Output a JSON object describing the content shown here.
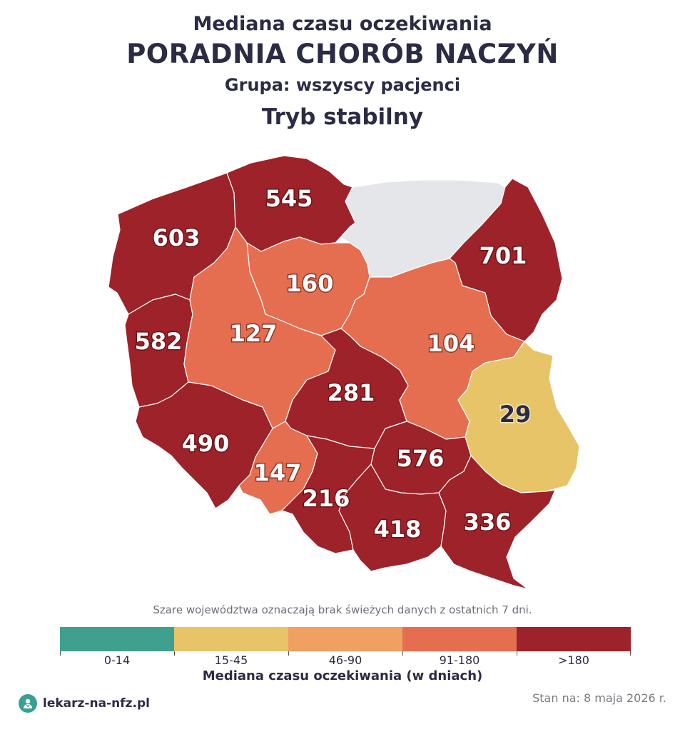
{
  "header": {
    "pretitle": "Mediana czasu oczekiwania",
    "title": "PORADNIA CHORÓB NACZYŃ",
    "group": "Grupa: wszyscy pacjenci",
    "mode": "Tryb stabilny"
  },
  "map": {
    "no_data_color": "#e5e6ea",
    "regions": [
      {
        "id": "zachodniopomorskie",
        "value": 603,
        "label": "603",
        "color": "#9e2229",
        "text_color": "#ffffff"
      },
      {
        "id": "pomorskie",
        "value": 545,
        "label": "545",
        "color": "#9e2229",
        "text_color": "#ffffff"
      },
      {
        "id": "warminsko-mazurskie",
        "value": null,
        "label": "",
        "color": "#e5e6ea",
        "text_color": "#2b2b44"
      },
      {
        "id": "podlaskie",
        "value": 701,
        "label": "701",
        "color": "#9e2229",
        "text_color": "#ffffff"
      },
      {
        "id": "kujawsko-pomorskie",
        "value": 160,
        "label": "160",
        "color": "#e56e50",
        "text_color": "#ffffff"
      },
      {
        "id": "lubuskie",
        "value": 582,
        "label": "582",
        "color": "#9e2229",
        "text_color": "#ffffff"
      },
      {
        "id": "wielkopolskie",
        "value": 127,
        "label": "127",
        "color": "#e56e50",
        "text_color": "#ffffff"
      },
      {
        "id": "mazowieckie",
        "value": 104,
        "label": "104",
        "color": "#e56e50",
        "text_color": "#ffffff"
      },
      {
        "id": "lodzkie",
        "value": 281,
        "label": "281",
        "color": "#9e2229",
        "text_color": "#ffffff"
      },
      {
        "id": "lubelskie",
        "value": 29,
        "label": "29",
        "color": "#e8c468",
        "text_color": "#2b2b44"
      },
      {
        "id": "dolnoslaskie",
        "value": 490,
        "label": "490",
        "color": "#9e2229",
        "text_color": "#ffffff"
      },
      {
        "id": "opolskie",
        "value": 147,
        "label": "147",
        "color": "#e56e50",
        "text_color": "#ffffff"
      },
      {
        "id": "slaskie",
        "value": 216,
        "label": "216",
        "color": "#9e2229",
        "text_color": "#ffffff"
      },
      {
        "id": "swietokrzyskie",
        "value": 576,
        "label": "576",
        "color": "#9e2229",
        "text_color": "#ffffff"
      },
      {
        "id": "malopolskie",
        "value": 418,
        "label": "418",
        "color": "#9e2229",
        "text_color": "#ffffff"
      },
      {
        "id": "podkarpackie",
        "value": 336,
        "label": "336",
        "color": "#9e2229",
        "text_color": "#ffffff"
      }
    ]
  },
  "note": "Szare województwa oznaczają brak świeżych danych z ostatnich 7 dni.",
  "legend": {
    "title": "Mediana czasu oczekiwania (w dniach)",
    "items": [
      {
        "label": "0-14",
        "color": "#3fa08f"
      },
      {
        "label": "15-45",
        "color": "#e8c468"
      },
      {
        "label": "46-90",
        "color": "#f0a060"
      },
      {
        "label": "91-180",
        "color": "#e56e50"
      },
      {
        "label": ">180",
        "color": "#9e2229"
      }
    ]
  },
  "footer": {
    "brand": "lekarz-na-nfz.pl",
    "date": "Stan na: 8 maja 2026 r."
  }
}
